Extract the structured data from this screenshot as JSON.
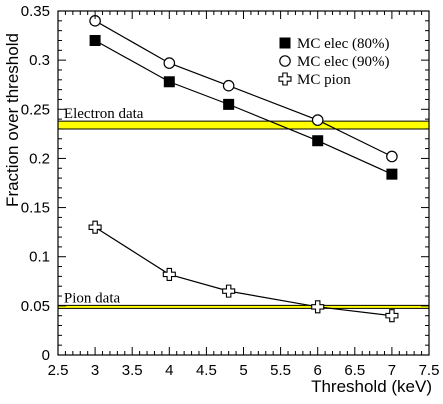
{
  "chart_data": {
    "type": "line",
    "xlabel": "Threshold (keV)",
    "ylabel": "Fraction over threshold",
    "xlim": [
      2.5,
      7.5
    ],
    "ylim": [
      0,
      0.35
    ],
    "x_ticks": [
      {
        "value": 2.5,
        "label": "2.5"
      },
      {
        "value": 3,
        "label": "3"
      },
      {
        "value": 3.5,
        "label": "3.5"
      },
      {
        "value": 4,
        "label": "4"
      },
      {
        "value": 4.5,
        "label": "4.5"
      },
      {
        "value": 5,
        "label": "5"
      },
      {
        "value": 5.5,
        "label": "5.5"
      },
      {
        "value": 6,
        "label": "6"
      },
      {
        "value": 6.5,
        "label": "6.5"
      },
      {
        "value": 7,
        "label": "7"
      },
      {
        "value": 7.5,
        "label": "7.5"
      }
    ],
    "y_ticks": [
      {
        "value": 0,
        "label": "0"
      },
      {
        "value": 0.05,
        "label": "0.05"
      },
      {
        "value": 0.1,
        "label": "0.1"
      },
      {
        "value": 0.15,
        "label": "0.15"
      },
      {
        "value": 0.2,
        "label": "0.2"
      },
      {
        "value": 0.25,
        "label": "0.25"
      },
      {
        "value": 0.3,
        "label": "0.3"
      },
      {
        "value": 0.35,
        "label": "0.35"
      }
    ],
    "legend_position": "top-right",
    "series": [
      {
        "name": "MC elec (80%)",
        "marker": "filled-square",
        "points": [
          {
            "x": 3,
            "y": 0.32
          },
          {
            "x": 4,
            "y": 0.278
          },
          {
            "x": 4.8,
            "y": 0.255
          },
          {
            "x": 6,
            "y": 0.218
          },
          {
            "x": 7,
            "y": 0.184
          }
        ]
      },
      {
        "name": "MC elec (90%)",
        "marker": "open-circle",
        "points": [
          {
            "x": 3,
            "y": 0.34
          },
          {
            "x": 4,
            "y": 0.297
          },
          {
            "x": 4.8,
            "y": 0.274
          },
          {
            "x": 6,
            "y": 0.239
          },
          {
            "x": 7,
            "y": 0.202
          }
        ]
      },
      {
        "name": "MC pion",
        "marker": "open-cross",
        "points": [
          {
            "x": 3,
            "y": 0.13
          },
          {
            "x": 4,
            "y": 0.082
          },
          {
            "x": 4.8,
            "y": 0.065
          },
          {
            "x": 6,
            "y": 0.049
          },
          {
            "x": 7,
            "y": 0.04
          }
        ]
      }
    ],
    "bands": [
      {
        "label": "Electron data",
        "value": 0.234,
        "low": 0.23,
        "high": 0.238,
        "fill": "#ffff00"
      },
      {
        "label": "Pion data",
        "value": 0.049,
        "low": 0.0475,
        "high": 0.0505,
        "fill": "#ffff00"
      }
    ]
  }
}
